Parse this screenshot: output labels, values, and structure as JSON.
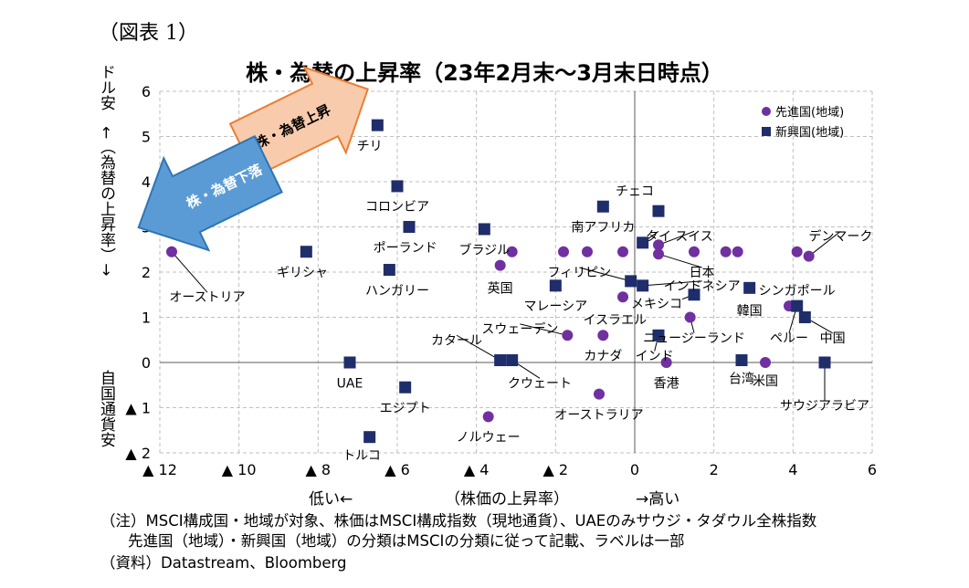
{
  "figure_label": "（図表 1）",
  "chart_data": {
    "type": "scatter",
    "title": "株・為替の上昇率（23年2月末～3月末日時点）",
    "xlabel": "（株価の上昇率）",
    "xlabel_low": "低い←",
    "xlabel_high": "→高い",
    "ylabel_top": "ドル安　←（為替の上昇率）→",
    "ylabel_bottom": "自国通貨安",
    "xlim": [
      -12,
      6
    ],
    "ylim": [
      -2,
      6
    ],
    "x_ticks": [
      -12,
      -10,
      -8,
      -6,
      -4,
      -2,
      0,
      2,
      4,
      6
    ],
    "x_tick_labels": [
      "▲ 12",
      "▲ 10",
      "▲ 8",
      "▲ 6",
      "▲ 4",
      "▲ 2",
      "0",
      "2",
      "4",
      "6"
    ],
    "y_ticks": [
      -2,
      -1,
      0,
      1,
      2,
      3,
      4,
      5,
      6
    ],
    "y_tick_labels": [
      "▲ 2",
      "▲ 1",
      "0",
      "1",
      "2",
      "3",
      "4",
      "5",
      "6"
    ],
    "grid": true,
    "legend_position": "top-right",
    "series": [
      {
        "name": "先進国(地域)",
        "color": "#7030a0",
        "marker": "circle",
        "points": [
          {
            "x": -11.7,
            "y": 2.45
          },
          {
            "x": -3.4,
            "y": 2.15
          },
          {
            "x": -3.1,
            "y": 2.45
          },
          {
            "x": -1.8,
            "y": 2.45
          },
          {
            "x": -1.2,
            "y": 2.45
          },
          {
            "x": -0.3,
            "y": 2.45
          },
          {
            "x": 0.6,
            "y": 2.6
          },
          {
            "x": 0.6,
            "y": 2.4
          },
          {
            "x": 1.5,
            "y": 2.45
          },
          {
            "x": 2.3,
            "y": 2.45
          },
          {
            "x": 2.6,
            "y": 2.45
          },
          {
            "x": 4.1,
            "y": 2.45
          },
          {
            "x": 4.4,
            "y": 2.35
          },
          {
            "x": 3.9,
            "y": 1.25
          },
          {
            "x": -0.3,
            "y": 1.45
          },
          {
            "x": 1.4,
            "y": 1.0
          },
          {
            "x": -1.7,
            "y": 0.6
          },
          {
            "x": -0.8,
            "y": 0.6
          },
          {
            "x": 0.8,
            "y": 0.0
          },
          {
            "x": 3.3,
            "y": 0.0
          },
          {
            "x": -0.9,
            "y": -0.7
          },
          {
            "x": -3.7,
            "y": -1.2
          }
        ]
      },
      {
        "name": "新興国(地域)",
        "color": "#1f2d6b",
        "marker": "square",
        "points": [
          {
            "x": -6.5,
            "y": 5.25
          },
          {
            "x": -6.0,
            "y": 3.9
          },
          {
            "x": -5.7,
            "y": 3.0
          },
          {
            "x": -3.8,
            "y": 2.95
          },
          {
            "x": -8.3,
            "y": 2.45
          },
          {
            "x": -6.2,
            "y": 2.05
          },
          {
            "x": -0.8,
            "y": 3.45
          },
          {
            "x": 0.6,
            "y": 3.35
          },
          {
            "x": 0.2,
            "y": 2.65
          },
          {
            "x": -2.0,
            "y": 1.7
          },
          {
            "x": -0.1,
            "y": 1.8
          },
          {
            "x": 0.2,
            "y": 1.7
          },
          {
            "x": 1.5,
            "y": 1.5
          },
          {
            "x": 2.9,
            "y": 1.65
          },
          {
            "x": 4.1,
            "y": 1.25
          },
          {
            "x": 4.3,
            "y": 1.0
          },
          {
            "x": 0.6,
            "y": 0.6
          },
          {
            "x": 2.7,
            "y": 0.05
          },
          {
            "x": 4.8,
            "y": 0.0
          },
          {
            "x": -3.4,
            "y": 0.05
          },
          {
            "x": -3.1,
            "y": 0.05
          },
          {
            "x": -7.2,
            "y": 0.0
          },
          {
            "x": -5.8,
            "y": -0.55
          },
          {
            "x": -6.7,
            "y": -1.65
          }
        ]
      }
    ],
    "annotations": [
      {
        "text": "オーストリア",
        "x": -11.7,
        "y": 2.45,
        "tx": -10.8,
        "ty": 1.45,
        "anchor": "middle",
        "leader": true
      },
      {
        "text": "チリ",
        "x": -6.5,
        "y": 5.25,
        "tx": -6.7,
        "ty": 4.8,
        "anchor": "middle",
        "leader": false
      },
      {
        "text": "コロンビア",
        "x": -6.0,
        "y": 3.9,
        "tx": -6.0,
        "ty": 3.45,
        "anchor": "middle",
        "leader": false
      },
      {
        "text": "ポーランド",
        "x": -5.7,
        "y": 3.0,
        "tx": -5.8,
        "ty": 2.55,
        "anchor": "middle",
        "leader": false
      },
      {
        "text": "ギリシャ",
        "x": -8.3,
        "y": 2.45,
        "tx": -8.4,
        "ty": 2.0,
        "anchor": "middle",
        "leader": false
      },
      {
        "text": "ハンガリー",
        "x": -6.2,
        "y": 2.05,
        "tx": -6.0,
        "ty": 1.6,
        "anchor": "middle",
        "leader": false
      },
      {
        "text": "ブラジル",
        "x": -3.8,
        "y": 2.95,
        "tx": -3.8,
        "ty": 2.5,
        "anchor": "middle",
        "leader": false
      },
      {
        "text": "英国",
        "x": -3.4,
        "y": 2.15,
        "tx": -3.4,
        "ty": 1.65,
        "anchor": "middle",
        "leader": false
      },
      {
        "text": "チェコ",
        "x": -0.8,
        "y": 3.45,
        "tx": 0.0,
        "ty": 3.8,
        "anchor": "middle",
        "leader": false
      },
      {
        "text": "南アフリカ",
        "x": -0.8,
        "y": 3.45,
        "tx": -0.8,
        "ty": 3.0,
        "anchor": "middle",
        "leader": false
      },
      {
        "text": "タイ",
        "x": 0.2,
        "y": 2.65,
        "tx": 0.6,
        "ty": 2.8,
        "anchor": "middle",
        "leader": true
      },
      {
        "text": "スイス",
        "x": 0.6,
        "y": 2.6,
        "tx": 1.5,
        "ty": 2.8,
        "anchor": "middle",
        "leader": true
      },
      {
        "text": "デンマーク",
        "x": 4.4,
        "y": 2.35,
        "tx": 5.2,
        "ty": 2.8,
        "anchor": "middle",
        "leader": true
      },
      {
        "text": "日本",
        "x": 0.6,
        "y": 2.4,
        "tx": 1.7,
        "ty": 2.0,
        "anchor": "middle",
        "leader": true
      },
      {
        "text": "フィリピン",
        "x": -0.1,
        "y": 1.8,
        "tx": -1.4,
        "ty": 2.0,
        "anchor": "middle",
        "leader": true
      },
      {
        "text": "インドネシア",
        "x": 0.2,
        "y": 1.7,
        "tx": 1.7,
        "ty": 1.7,
        "anchor": "middle",
        "leader": true
      },
      {
        "text": "シンガポール",
        "x": 2.9,
        "y": 1.65,
        "tx": 4.1,
        "ty": 1.6,
        "anchor": "middle",
        "leader": false
      },
      {
        "text": "マレーシア",
        "x": -2.0,
        "y": 1.7,
        "tx": -2.0,
        "ty": 1.25,
        "anchor": "middle",
        "leader": false
      },
      {
        "text": "メキシコ",
        "x": 1.5,
        "y": 1.5,
        "tx": 1.2,
        "ty": 1.3,
        "anchor": "end",
        "leader": true
      },
      {
        "text": "韓国",
        "x": 2.9,
        "y": 1.65,
        "tx": 2.9,
        "ty": 1.15,
        "anchor": "middle",
        "leader": false
      },
      {
        "text": "イスラエル",
        "x": -0.3,
        "y": 1.45,
        "tx": -0.5,
        "ty": 0.95,
        "anchor": "middle",
        "leader": false
      },
      {
        "text": "ニュージーランド",
        "x": 1.4,
        "y": 1.0,
        "tx": 1.5,
        "ty": 0.55,
        "anchor": "middle",
        "leader": true
      },
      {
        "text": "ペルー",
        "x": 4.1,
        "y": 1.25,
        "tx": 3.9,
        "ty": 0.55,
        "anchor": "middle",
        "leader": true
      },
      {
        "text": "中国",
        "x": 4.3,
        "y": 1.0,
        "tx": 5.0,
        "ty": 0.55,
        "anchor": "middle",
        "leader": true
      },
      {
        "text": "スウェーデン",
        "x": -1.7,
        "y": 0.6,
        "tx": -2.9,
        "ty": 0.75,
        "anchor": "middle",
        "leader": true
      },
      {
        "text": "カタール",
        "x": -3.4,
        "y": 0.05,
        "tx": -4.5,
        "ty": 0.5,
        "anchor": "middle",
        "leader": true
      },
      {
        "text": "カナダ",
        "x": -0.8,
        "y": 0.6,
        "tx": -0.8,
        "ty": 0.15,
        "anchor": "middle",
        "leader": false
      },
      {
        "text": "インド",
        "x": 0.6,
        "y": 0.6,
        "tx": 0.5,
        "ty": 0.15,
        "anchor": "middle",
        "leader": true
      },
      {
        "text": "香港",
        "x": 0.8,
        "y": 0.0,
        "tx": 0.8,
        "ty": -0.45,
        "anchor": "middle",
        "leader": false
      },
      {
        "text": "台湾",
        "x": 2.7,
        "y": 0.05,
        "tx": 2.7,
        "ty": -0.35,
        "anchor": "middle",
        "leader": false
      },
      {
        "text": "米国",
        "x": 3.3,
        "y": 0.0,
        "tx": 3.3,
        "ty": -0.4,
        "anchor": "middle",
        "leader": false
      },
      {
        "text": "サウジアラビア",
        "x": 4.8,
        "y": 0.0,
        "tx": 4.8,
        "ty": -0.95,
        "anchor": "middle",
        "leader": true
      },
      {
        "text": "UAE",
        "x": -7.2,
        "y": 0.0,
        "tx": -7.2,
        "ty": -0.45,
        "anchor": "middle",
        "leader": false
      },
      {
        "text": "クウェート",
        "x": -3.1,
        "y": 0.05,
        "tx": -2.4,
        "ty": -0.45,
        "anchor": "middle",
        "leader": true
      },
      {
        "text": "エジプト",
        "x": -5.8,
        "y": -0.55,
        "tx": -5.8,
        "ty": -1.0,
        "anchor": "middle",
        "leader": false
      },
      {
        "text": "オーストラリア",
        "x": -0.9,
        "y": -0.7,
        "tx": -0.9,
        "ty": -1.15,
        "anchor": "middle",
        "leader": false
      },
      {
        "text": "ノルウェー",
        "x": -3.7,
        "y": -1.2,
        "tx": -3.7,
        "ty": -1.65,
        "anchor": "middle",
        "leader": false
      },
      {
        "text": "トルコ",
        "x": -6.7,
        "y": -1.65,
        "tx": -6.9,
        "ty": -2.05,
        "anchor": "middle",
        "leader": false
      }
    ],
    "arrows": [
      {
        "label": "株・為替上昇",
        "direction": "up-right",
        "color": "#f8cbad"
      },
      {
        "label": "株・為替下落",
        "direction": "down-left",
        "color": "#5b9bd5"
      }
    ]
  },
  "notes": [
    "（注）MSCI構成国・地域が対象、株価はMSCI構成指数（現地通貨）、UAEのみサウジ・タダウル全株指数",
    "先進国（地域）・新興国（地域）の分類はMSCIの分類に従って記載、ラベルは一部",
    "（資料）Datastream、Bloomberg"
  ]
}
